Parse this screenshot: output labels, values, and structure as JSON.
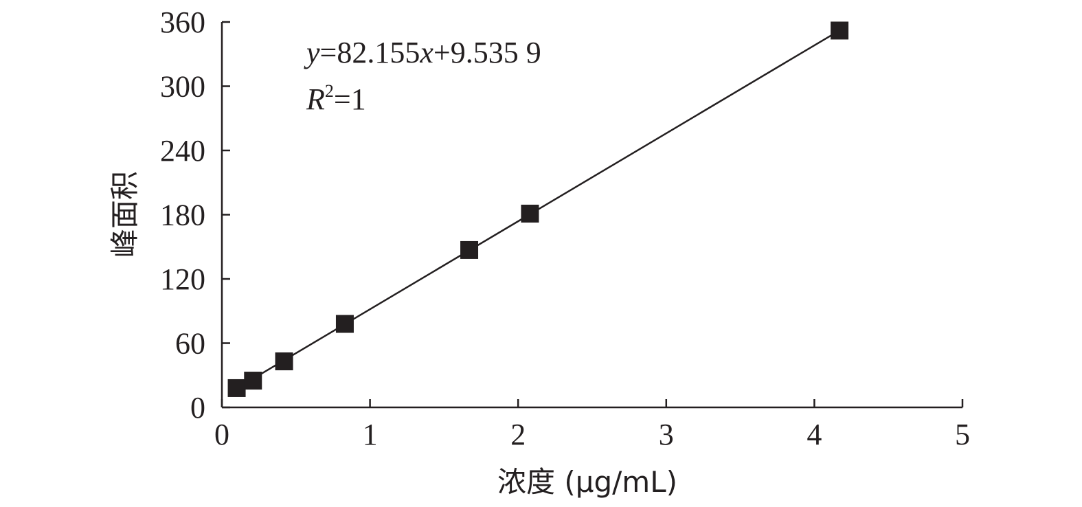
{
  "chart_data": {
    "type": "scatter",
    "xlabel": "浓度 (μg/mL)",
    "ylabel": "峰面积",
    "xlim": [
      0,
      5
    ],
    "ylim": [
      0,
      360
    ],
    "x_ticks": [
      "0",
      "1",
      "2",
      "3",
      "4",
      "5"
    ],
    "y_ticks": [
      "0",
      "60",
      "120",
      "180",
      "240",
      "300",
      "360"
    ],
    "grid": false,
    "legend": "none",
    "series": [
      {
        "marker": "square",
        "color": "#231f20",
        "points": [
          {
            "x": 0.1,
            "y": 18.0
          },
          {
            "x": 0.21,
            "y": 25.0
          },
          {
            "x": 0.42,
            "y": 43.0
          },
          {
            "x": 0.83,
            "y": 78.0
          },
          {
            "x": 1.67,
            "y": 147.0
          },
          {
            "x": 2.08,
            "y": 181.0
          },
          {
            "x": 4.17,
            "y": 352.0
          }
        ]
      }
    ],
    "trendline": {
      "slope": 82.155,
      "intercept": 9.5359,
      "x_range": [
        0.1,
        4.17
      ],
      "color": "#231f20"
    },
    "annotations": {
      "equation": {
        "y_symbol": "y",
        "equals_slope": "=82.155",
        "x_symbol": "x",
        "plus_intercept": "+9.535 9"
      },
      "r_squared": {
        "symbol": "R",
        "superscript": "2",
        "value": "=1"
      }
    }
  }
}
